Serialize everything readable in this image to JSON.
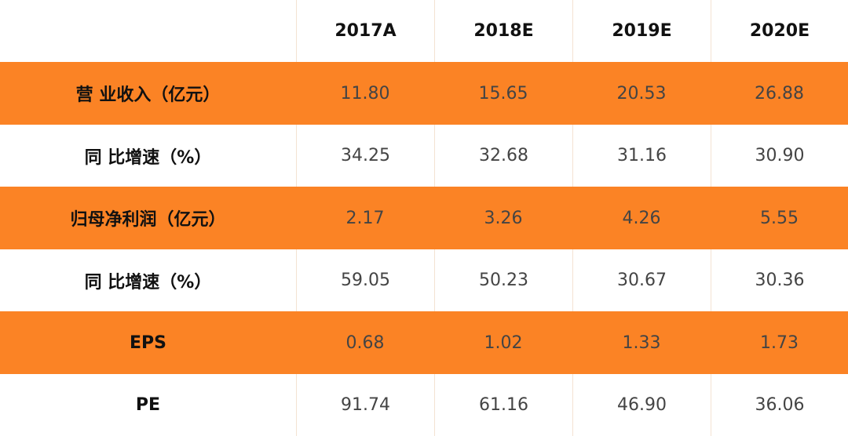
{
  "table": {
    "header": {
      "corner": "",
      "years": [
        "2017A",
        "2018E",
        "2019E",
        "2020E"
      ]
    },
    "rows": [
      {
        "label": "营 业收入（亿元）",
        "values": [
          "11.80",
          "15.65",
          "20.53",
          "26.88"
        ]
      },
      {
        "label": "同 比增速（%）",
        "values": [
          "34.25",
          "32.68",
          "31.16",
          "30.90"
        ]
      },
      {
        "label": "归母净利润（亿元）",
        "values": [
          "2.17",
          "3.26",
          "4.26",
          "5.55"
        ]
      },
      {
        "label": "同 比增速（%）",
        "values": [
          "59.05",
          "50.23",
          "30.67",
          "30.36"
        ]
      },
      {
        "label": "EPS",
        "values": [
          "0.68",
          "1.02",
          "1.33",
          "1.73"
        ]
      },
      {
        "label": "PE",
        "values": [
          "91.74",
          "61.16",
          "46.90",
          "36.06"
        ]
      }
    ]
  },
  "colors": {
    "accent_orange": "#fb8325",
    "row_white": "#ffffff",
    "label_text": "#111111",
    "value_text": "#444444"
  }
}
